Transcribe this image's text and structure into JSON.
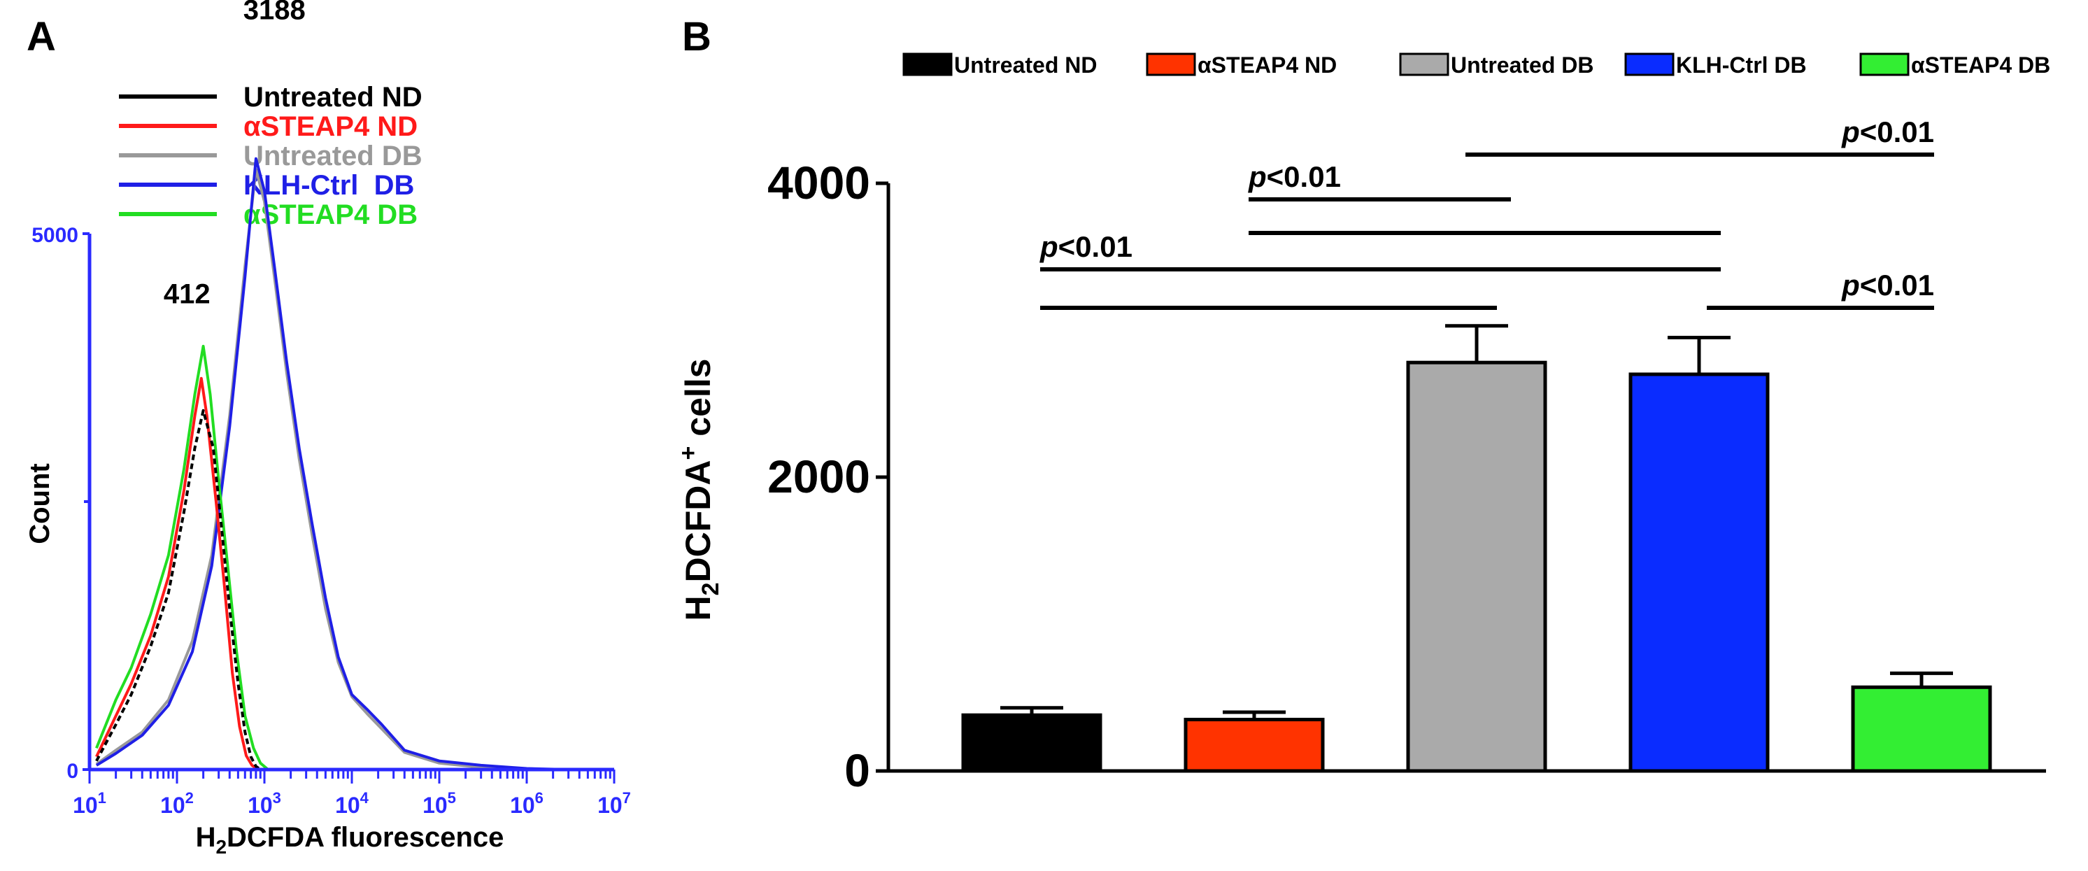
{
  "panel_a": {
    "label": "A",
    "chart_data": {
      "type": "line",
      "xscale": "log",
      "xlim": [
        10,
        10000000
      ],
      "ylim": [
        0,
        5000
      ],
      "xlabel_main": "H",
      "xlabel_sub": "2",
      "xlabel_rest": "DCFDA fluorescence",
      "ylabel": "Count",
      "y_ticks": [
        {
          "value": 0,
          "label": "0"
        },
        {
          "value": 5000,
          "label": "5000"
        }
      ],
      "x_ticks": [
        {
          "value": 10,
          "base": "10",
          "exp": "1"
        },
        {
          "value": 100,
          "base": "10",
          "exp": "2"
        },
        {
          "value": 1000,
          "base": "10",
          "exp": "3"
        },
        {
          "value": 10000,
          "base": "10",
          "exp": "4"
        },
        {
          "value": 100000,
          "base": "10",
          "exp": "5"
        },
        {
          "value": 1000000,
          "base": "10",
          "exp": "6"
        },
        {
          "value": 10000000,
          "base": "10",
          "exp": "7"
        }
      ],
      "peak_labels": [
        {
          "text": "412",
          "x": 130,
          "y": 4350
        },
        {
          "text": "3188",
          "x": 1300,
          "y": 7000
        }
      ],
      "series": [
        {
          "name": "Untreated ND",
          "color": "#000000",
          "dashed": true,
          "x": [
            12,
            20,
            30,
            50,
            80,
            120,
            160,
            200,
            260,
            320,
            400,
            500,
            600,
            700,
            800,
            900
          ],
          "y": [
            80,
            420,
            700,
            1150,
            1650,
            2400,
            3000,
            3350,
            3000,
            2300,
            1500,
            800,
            350,
            120,
            30,
            0
          ]
        },
        {
          "name": "αSTEAP4 ND",
          "color": "#ff1a1a",
          "dashed": false,
          "x": [
            12,
            20,
            30,
            50,
            80,
            120,
            160,
            190,
            220,
            280,
            350,
            430,
            520,
            620,
            720,
            850
          ],
          "y": [
            120,
            500,
            800,
            1250,
            1800,
            2600,
            3300,
            3650,
            3300,
            2500,
            1700,
            900,
            400,
            130,
            40,
            0
          ]
        },
        {
          "name": "Untreated DB",
          "color": "#999999",
          "dashed": false,
          "x": [
            12,
            20,
            40,
            80,
            150,
            250,
            400,
            600,
            800,
            1000,
            1300,
            1800,
            2500,
            3500,
            5000,
            7000,
            10000,
            15000,
            22000,
            40000,
            100000,
            300000,
            1000000,
            2000000
          ],
          "y": [
            50,
            180,
            350,
            650,
            1200,
            2000,
            3300,
            4700,
            5600,
            5300,
            4600,
            3700,
            2900,
            2200,
            1500,
            1000,
            680,
            520,
            380,
            160,
            60,
            20,
            5,
            0
          ]
        },
        {
          "name": "KLH-Ctrl DB",
          "color": "#1f1fe6",
          "dashed": false,
          "x": [
            12,
            20,
            40,
            80,
            150,
            250,
            400,
            600,
            800,
            1000,
            1300,
            1800,
            2500,
            3500,
            5000,
            7000,
            10000,
            15000,
            22000,
            40000,
            100000,
            300000,
            1000000,
            3000000
          ],
          "y": [
            40,
            150,
            320,
            600,
            1100,
            1900,
            3200,
            4600,
            5700,
            5400,
            4700,
            3800,
            3000,
            2300,
            1600,
            1050,
            700,
            560,
            420,
            180,
            80,
            40,
            10,
            0
          ]
        },
        {
          "name": "αSTEAP4 DB",
          "color": "#22dd22",
          "dashed": false,
          "x": [
            12,
            20,
            30,
            50,
            80,
            120,
            160,
            200,
            240,
            300,
            380,
            480,
            600,
            750,
            900,
            1100
          ],
          "y": [
            200,
            650,
            950,
            1450,
            2000,
            2800,
            3500,
            3950,
            3500,
            2700,
            1900,
            1100,
            500,
            200,
            60,
            0
          ]
        }
      ]
    },
    "legend": [
      {
        "label": "Untreated ND",
        "color": "#000000"
      },
      {
        "label": "αSTEAP4 ND",
        "color": "#ff1a1a"
      },
      {
        "label": "Untreated DB",
        "color": "#999999"
      },
      {
        "label": "KLH-Ctrl  DB",
        "color": "#1f1fe6"
      },
      {
        "label": "αSTEAP4 DB",
        "color": "#22dd22"
      }
    ]
  },
  "panel_b": {
    "label": "B",
    "chart_data": {
      "type": "bar",
      "categories": [
        "Untreated ND",
        "αSTEAP4 ND",
        "Untreated DB",
        "KLH-Ctrl DB",
        "αSTEAP4 DB"
      ],
      "values": [
        380,
        350,
        2780,
        2700,
        570
      ],
      "errors": [
        50,
        50,
        250,
        250,
        95
      ],
      "colors": [
        "#000000",
        "#ff3300",
        "#aaaaaa",
        "#0a2cff",
        "#33ee33"
      ],
      "ylim": [
        0,
        4000
      ],
      "y_ticks": [
        0,
        2000,
        4000
      ],
      "ylabel_main": "H",
      "ylabel_sub": "2",
      "ylabel_rest": "DCFDA",
      "ylabel_sup": "+",
      "ylabel_end": " cells",
      "significance": [
        {
          "from": 0,
          "to": 2,
          "label": ""
        },
        {
          "from": 0,
          "to": 3,
          "label": "p<0.01"
        },
        {
          "from": 1,
          "to": 3,
          "label": ""
        },
        {
          "from": 1,
          "to": 2,
          "label": "p<0.01"
        },
        {
          "from": 2,
          "to": 4,
          "label": "p<0.01"
        },
        {
          "from": 3,
          "to": 4,
          "label": "p<0.01"
        }
      ]
    },
    "legend": [
      {
        "label": "Untreated ND",
        "color": "#000000"
      },
      {
        "label": "αSTEAP4 ND",
        "color": "#ff3300"
      },
      {
        "label": "Untreated DB",
        "color": "#aaaaaa"
      },
      {
        "label": "KLH-Ctrl DB",
        "color": "#0a2cff"
      },
      {
        "label": "αSTEAP4 DB",
        "color": "#33ee33"
      }
    ]
  }
}
